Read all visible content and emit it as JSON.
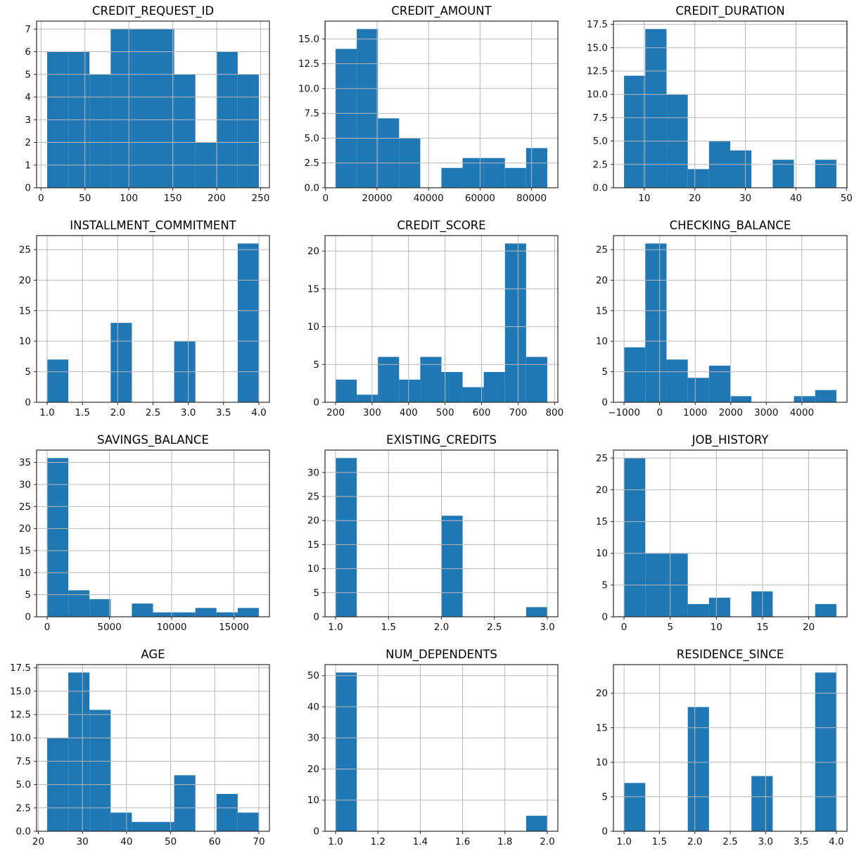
{
  "figure": {
    "background": "#ffffff",
    "bar_color": "#1f77b4",
    "grid_color": "#b9b9b9",
    "spine_color": "#2b2b2b",
    "tick_color": "#2b2b2b",
    "text_color": "#111111"
  },
  "chart_data": [
    {
      "type": "bar",
      "variant": "histogram",
      "title": "CREDIT_REQUEST_ID",
      "bin_start": 7,
      "bin_end": 248,
      "counts": [
        6,
        6,
        5,
        7,
        7,
        7,
        5,
        2,
        6,
        5
      ],
      "xlim": [
        -5.05,
        260.05
      ],
      "ylim": [
        0,
        7.35
      ],
      "xticks": [
        0,
        50,
        100,
        150,
        200,
        250
      ],
      "xtick_labels": [
        "0",
        "50",
        "100",
        "150",
        "200",
        "250"
      ],
      "yticks": [
        0,
        1,
        2,
        3,
        4,
        5,
        6,
        7
      ],
      "ytick_labels": [
        "0",
        "1",
        "2",
        "3",
        "4",
        "5",
        "6",
        "7"
      ],
      "grid": true,
      "legend": false
    },
    {
      "type": "bar",
      "variant": "histogram",
      "title": "CREDIT_AMOUNT",
      "bin_start": 3900,
      "bin_end": 86100,
      "counts": [
        14,
        16,
        7,
        5,
        0,
        2,
        3,
        3,
        2,
        4
      ],
      "xlim": [
        -210,
        90210
      ],
      "ylim": [
        0,
        16.8
      ],
      "xticks": [
        0,
        20000,
        40000,
        60000,
        80000
      ],
      "xtick_labels": [
        "0",
        "20000",
        "40000",
        "60000",
        "80000"
      ],
      "yticks": [
        0,
        2.5,
        5,
        7.5,
        10,
        12.5,
        15
      ],
      "ytick_labels": [
        "0.0",
        "2.5",
        "5.0",
        "7.5",
        "10.0",
        "12.5",
        "15.0"
      ],
      "grid": true,
      "legend": false
    },
    {
      "type": "bar",
      "variant": "histogram",
      "title": "CREDIT_DURATION",
      "bin_start": 6,
      "bin_end": 48,
      "counts": [
        12,
        17,
        10,
        2,
        5,
        4,
        0,
        3,
        0,
        3
      ],
      "xlim": [
        3.9,
        50.1
      ],
      "ylim": [
        0,
        17.85
      ],
      "xticks": [
        10,
        20,
        30,
        40,
        50
      ],
      "xtick_labels": [
        "10",
        "20",
        "30",
        "40",
        "50"
      ],
      "yticks": [
        0,
        2.5,
        5,
        7.5,
        10,
        12.5,
        15,
        17.5
      ],
      "ytick_labels": [
        "0.0",
        "2.5",
        "5.0",
        "7.5",
        "10.0",
        "12.5",
        "15.0",
        "17.5"
      ],
      "grid": true,
      "legend": false
    },
    {
      "type": "bar",
      "variant": "histogram",
      "title": "INSTALLMENT_COMMITMENT",
      "bin_start": 1,
      "bin_end": 4,
      "counts": [
        7,
        0,
        0,
        13,
        0,
        0,
        10,
        0,
        0,
        26
      ],
      "xlim": [
        0.85,
        4.15
      ],
      "ylim": [
        0,
        27.3
      ],
      "xticks": [
        1,
        1.5,
        2,
        2.5,
        3,
        3.5,
        4
      ],
      "xtick_labels": [
        "1.0",
        "1.5",
        "2.0",
        "2.5",
        "3.0",
        "3.5",
        "4.0"
      ],
      "yticks": [
        0,
        5,
        10,
        15,
        20,
        25
      ],
      "ytick_labels": [
        "0",
        "5",
        "10",
        "15",
        "20",
        "25"
      ],
      "grid": true,
      "legend": false
    },
    {
      "type": "bar",
      "variant": "histogram",
      "title": "CREDIT_SCORE",
      "bin_start": 200,
      "bin_end": 780,
      "counts": [
        3,
        1,
        6,
        3,
        6,
        4,
        2,
        4,
        21,
        6
      ],
      "xlim": [
        171,
        809
      ],
      "ylim": [
        0,
        22.05
      ],
      "xticks": [
        200,
        300,
        400,
        500,
        600,
        700,
        800
      ],
      "xtick_labels": [
        "200",
        "300",
        "400",
        "500",
        "600",
        "700",
        "800"
      ],
      "yticks": [
        0,
        5,
        10,
        15,
        20
      ],
      "ytick_labels": [
        "0",
        "5",
        "10",
        "15",
        "20"
      ],
      "grid": true,
      "legend": false
    },
    {
      "type": "bar",
      "variant": "histogram",
      "title": "CHECKING_BALANCE",
      "bin_start": -1000,
      "bin_end": 4970,
      "counts": [
        9,
        26,
        7,
        4,
        6,
        1,
        0,
        0,
        1,
        2
      ],
      "xlim": [
        -1298.5,
        5268.5
      ],
      "ylim": [
        0,
        27.3
      ],
      "xticks": [
        -1000,
        0,
        1000,
        2000,
        3000,
        4000
      ],
      "xtick_labels": [
        "−1000",
        "0",
        "1000",
        "2000",
        "3000",
        "4000"
      ],
      "yticks": [
        0,
        5,
        10,
        15,
        20,
        25
      ],
      "ytick_labels": [
        "0",
        "5",
        "10",
        "15",
        "20",
        "25"
      ],
      "grid": true,
      "legend": false
    },
    {
      "type": "bar",
      "variant": "histogram",
      "title": "SAVINGS_BALANCE",
      "bin_start": 0,
      "bin_end": 17000,
      "counts": [
        36,
        6,
        4,
        0,
        3,
        1,
        1,
        2,
        1,
        2
      ],
      "xlim": [
        -850,
        17850
      ],
      "ylim": [
        0,
        37.8
      ],
      "xticks": [
        0,
        5000,
        10000,
        15000
      ],
      "xtick_labels": [
        "0",
        "5000",
        "10000",
        "15000"
      ],
      "yticks": [
        0,
        5,
        10,
        15,
        20,
        25,
        30,
        35
      ],
      "ytick_labels": [
        "0",
        "5",
        "10",
        "15",
        "20",
        "25",
        "30",
        "35"
      ],
      "grid": true,
      "legend": false
    },
    {
      "type": "bar",
      "variant": "histogram",
      "title": "EXISTING_CREDITS",
      "bin_start": 1,
      "bin_end": 3,
      "counts": [
        33,
        0,
        0,
        0,
        0,
        21,
        0,
        0,
        0,
        2
      ],
      "xlim": [
        0.9,
        3.1
      ],
      "ylim": [
        0,
        34.65
      ],
      "xticks": [
        1,
        1.5,
        2,
        2.5,
        3
      ],
      "xtick_labels": [
        "1.0",
        "1.5",
        "2.0",
        "2.5",
        "3.0"
      ],
      "yticks": [
        0,
        5,
        10,
        15,
        20,
        25,
        30
      ],
      "ytick_labels": [
        "0",
        "5",
        "10",
        "15",
        "20",
        "25",
        "30"
      ],
      "grid": true,
      "legend": false
    },
    {
      "type": "bar",
      "variant": "histogram",
      "title": "JOB_HISTORY",
      "bin_start": 0,
      "bin_end": 23,
      "counts": [
        25,
        10,
        10,
        2,
        3,
        0,
        4,
        0,
        0,
        2
      ],
      "xlim": [
        -1.15,
        24.15
      ],
      "ylim": [
        0,
        26.25
      ],
      "xticks": [
        0,
        5,
        10,
        15,
        20
      ],
      "xtick_labels": [
        "0",
        "5",
        "10",
        "15",
        "20"
      ],
      "yticks": [
        0,
        5,
        10,
        15,
        20,
        25
      ],
      "ytick_labels": [
        "0",
        "5",
        "10",
        "15",
        "20",
        "25"
      ],
      "grid": true,
      "legend": false
    },
    {
      "type": "bar",
      "variant": "histogram",
      "title": "AGE",
      "bin_start": 22,
      "bin_end": 70,
      "counts": [
        10,
        17,
        13,
        2,
        1,
        1,
        6,
        0,
        4,
        2
      ],
      "xlim": [
        19.6,
        72.4
      ],
      "ylim": [
        0,
        17.85
      ],
      "xticks": [
        20,
        30,
        40,
        50,
        60,
        70
      ],
      "xtick_labels": [
        "20",
        "30",
        "40",
        "50",
        "60",
        "70"
      ],
      "yticks": [
        0,
        2.5,
        5,
        7.5,
        10,
        12.5,
        15,
        17.5
      ],
      "ytick_labels": [
        "0.0",
        "2.5",
        "5.0",
        "7.5",
        "10.0",
        "12.5",
        "15.0",
        "17.5"
      ],
      "grid": true,
      "legend": false
    },
    {
      "type": "bar",
      "variant": "histogram",
      "title": "NUM_DEPENDENTS",
      "bin_start": 1,
      "bin_end": 2,
      "counts": [
        51,
        0,
        0,
        0,
        0,
        0,
        0,
        0,
        0,
        5
      ],
      "xlim": [
        0.95,
        2.05
      ],
      "ylim": [
        0,
        53.55
      ],
      "xticks": [
        1,
        1.2,
        1.4,
        1.6,
        1.8,
        2
      ],
      "xtick_labels": [
        "1.0",
        "1.2",
        "1.4",
        "1.6",
        "1.8",
        "2.0"
      ],
      "yticks": [
        0,
        10,
        20,
        30,
        40,
        50
      ],
      "ytick_labels": [
        "0",
        "10",
        "20",
        "30",
        "40",
        "50"
      ],
      "grid": true,
      "legend": false
    },
    {
      "type": "bar",
      "variant": "histogram",
      "title": "RESIDENCE_SINCE",
      "bin_start": 1,
      "bin_end": 4,
      "counts": [
        7,
        0,
        0,
        18,
        0,
        0,
        8,
        0,
        0,
        23
      ],
      "xlim": [
        0.85,
        4.15
      ],
      "ylim": [
        0,
        24.15
      ],
      "xticks": [
        1,
        1.5,
        2,
        2.5,
        3,
        3.5,
        4
      ],
      "xtick_labels": [
        "1.0",
        "1.5",
        "2.0",
        "2.5",
        "3.0",
        "3.5",
        "4.0"
      ],
      "yticks": [
        0,
        5,
        10,
        15,
        20
      ],
      "ytick_labels": [
        "0",
        "5",
        "10",
        "15",
        "20"
      ],
      "grid": true,
      "legend": false
    }
  ]
}
